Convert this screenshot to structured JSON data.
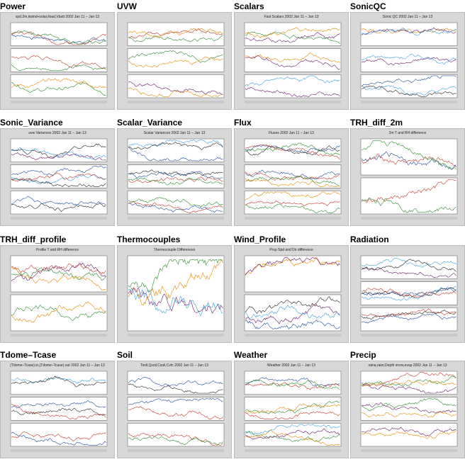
{
  "panels": [
    {
      "title": "Power",
      "subtitle": "spd.2m,kwind+solar,iload,Vbatt 2002 Jan 11 – Jan 13"
    },
    {
      "title": "UVW"
    },
    {
      "title": "Scalars",
      "subtitle": "Fast Scalars 2002 Jan 11 – Jan 13"
    },
    {
      "title": "SonicQC",
      "subtitle": "Sonic QC 2002 Jan 11 – Jan 13"
    },
    {
      "title": "Sonic_Variance",
      "subtitle": "uvw Variances 2002 Jan 11 – Jan 13"
    },
    {
      "title": "Scalar_Variance",
      "subtitle": "Scalar Variances 2002 Jan 11 – Jan 13"
    },
    {
      "title": "Flux",
      "subtitle": "Fluxes 2002 Jan 11 – Jan 13"
    },
    {
      "title": "TRH_diff_2m",
      "subtitle": "2m T and RH difference"
    },
    {
      "title": "TRH_diff_profile",
      "subtitle": "Profile T and RH difference"
    },
    {
      "title": "Thermocouples",
      "subtitle": "Thermocouple Differences"
    },
    {
      "title": "Wind_Profile",
      "subtitle": "Prop Spd and Dir difference"
    },
    {
      "title": "Radiation"
    },
    {
      "title": "Tdome–Tcase",
      "subtitle": "(Tdome–Tcase).in,(Tdome–Tcase).out 2002 Jan 11 – Jan 13"
    },
    {
      "title": "Soil",
      "subtitle": "Tsoil,Qsoil,Csoil,Cvfc 2002 Jan 11 – Jan 13"
    },
    {
      "title": "Weather",
      "subtitle": "Weather 2002 Jan 11 – Jan 13"
    },
    {
      "title": "Precip",
      "subtitle": "raina,rainr,Depth snow,evap 2002 Jan 11 – Jan 13"
    }
  ]
}
